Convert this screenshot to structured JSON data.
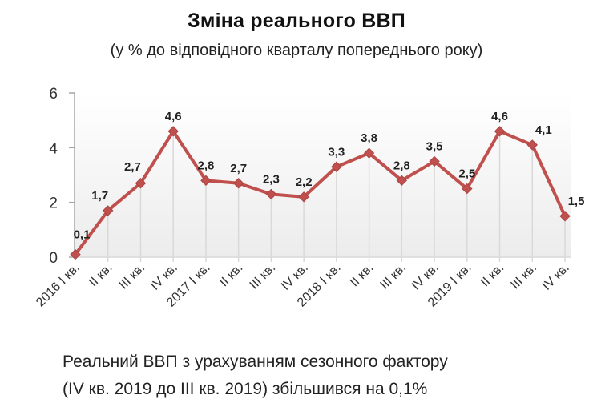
{
  "header": {
    "title": "Зміна реального ВВП",
    "subtitle": "(у % до відповідного кварталу попереднього року)"
  },
  "footnote": {
    "line1": "Реальний ВВП з урахуванням сезонного фактору",
    "line2": "(IV кв. 2019 до III кв. 2019) збільшився на 0,1%"
  },
  "colors": {
    "line": "#c0504d",
    "marker": "#c0504d",
    "grid": "#d9d9d9",
    "axis": "#a6a6a6"
  },
  "chart_data": {
    "type": "line",
    "title": "Зміна реального ВВП",
    "subtitle": "(у % до відповідного кварталу попереднього року)",
    "xlabel": "",
    "ylabel": "",
    "ylim": [
      0,
      6
    ],
    "yticks": [
      0,
      2,
      4,
      6
    ],
    "grid": "vertical",
    "legend": "none",
    "categories": [
      "2016 I кв.",
      "II кв.",
      "III кв.",
      "IV кв.",
      "2017 I кв.",
      "II кв.",
      "III кв.",
      "IV кв.",
      "2018 I кв.",
      "II кв.",
      "III кв.",
      "IV кв.",
      "2019 I кв.",
      "II кв.",
      "III кв.",
      "IV кв."
    ],
    "series": [
      {
        "name": "Реальний ВВП",
        "values": [
          0.1,
          1.7,
          2.7,
          4.6,
          2.8,
          2.7,
          2.3,
          2.2,
          3.3,
          3.8,
          2.8,
          3.5,
          2.5,
          4.6,
          4.1,
          1.5
        ],
        "labels": [
          "0,1",
          "1,7",
          "2,7",
          "4,6",
          "2,8",
          "2,7",
          "2,3",
          "2,2",
          "3,3",
          "3,8",
          "2,8",
          "3,5",
          "2,5",
          "4,6",
          "4,1",
          "1,5"
        ]
      }
    ]
  }
}
